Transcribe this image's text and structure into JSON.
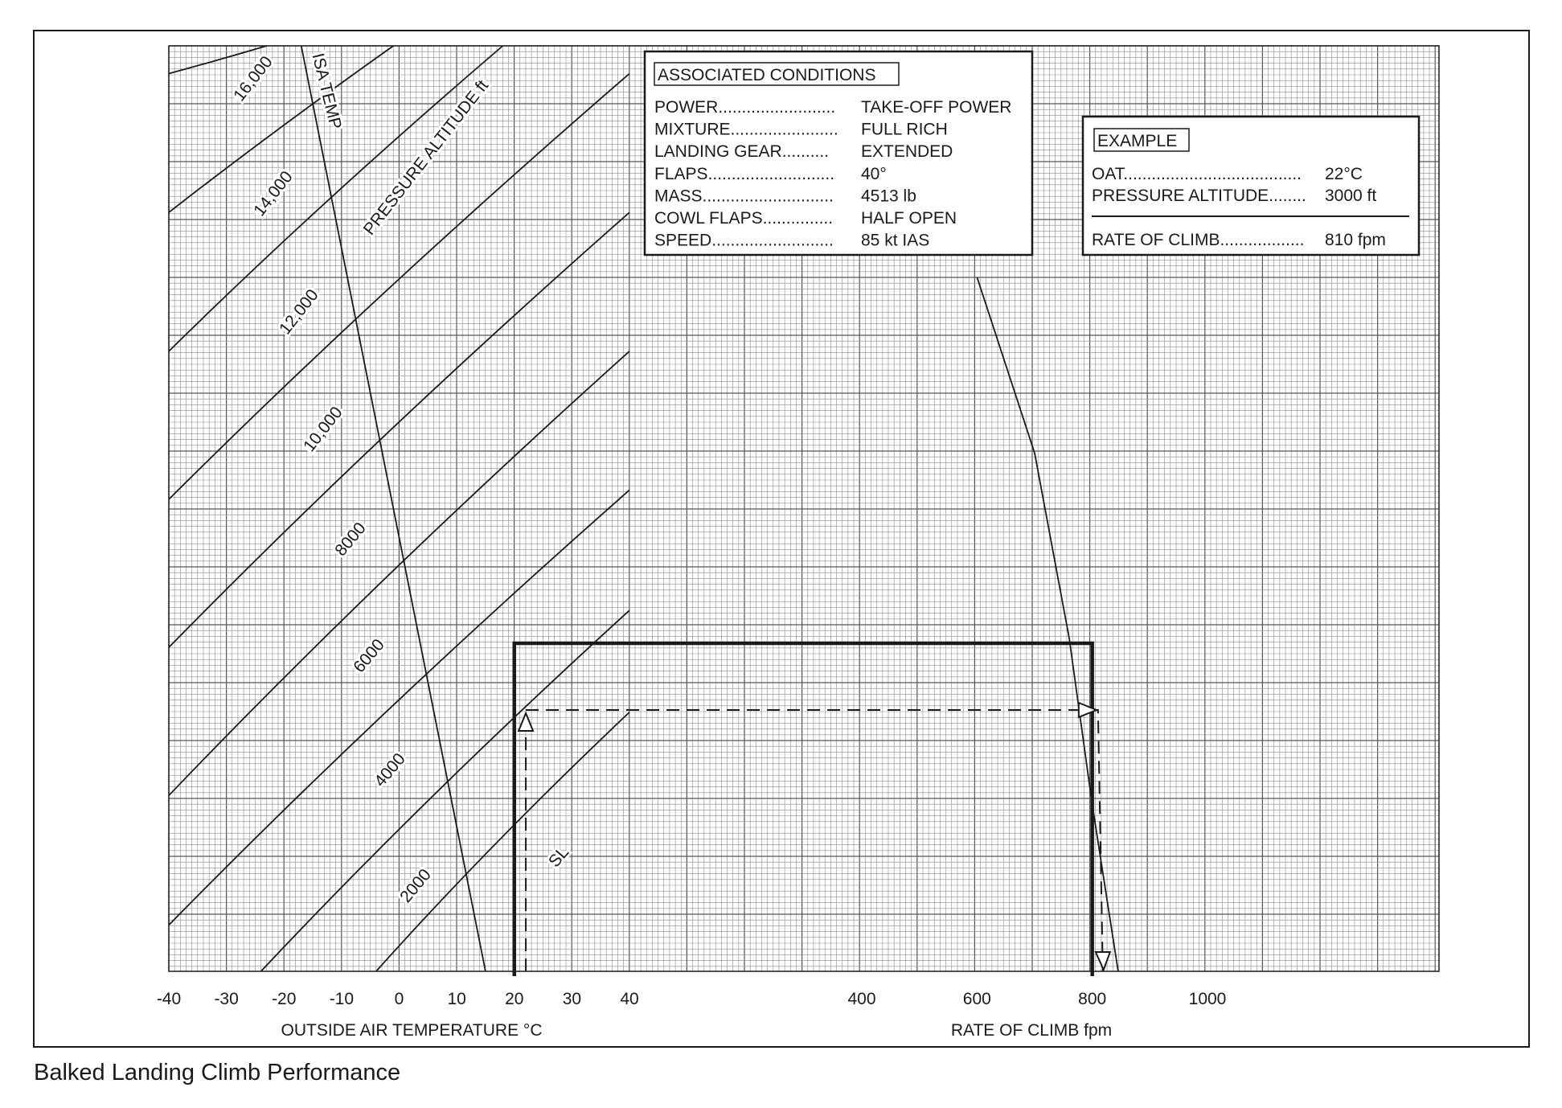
{
  "caption": "Balked Landing Climb Performance",
  "associated_conditions": {
    "title": "ASSOCIATED CONDITIONS",
    "rows": [
      {
        "label": "POWER.........................",
        "value": "TAKE-OFF POWER"
      },
      {
        "label": "MIXTURE.......................",
        "value": "FULL RICH"
      },
      {
        "label": "LANDING GEAR..........",
        "value": "EXTENDED"
      },
      {
        "label": "FLAPS...........................",
        "value": "40°"
      },
      {
        "label": "MASS............................",
        "value": "4513 lb"
      },
      {
        "label": "COWL FLAPS...............",
        "value": "HALF OPEN"
      },
      {
        "label": "SPEED..........................",
        "value": "85 kt IAS"
      }
    ]
  },
  "example": {
    "title": "EXAMPLE",
    "rows": [
      {
        "label": "OAT......................................",
        "value": "22°C"
      },
      {
        "label": "PRESSURE ALTITUDE........",
        "value": "3000 ft"
      }
    ],
    "result": {
      "label": "RATE OF CLIMB..................",
      "value": "810 fpm"
    }
  },
  "chart_data": {
    "type": "line",
    "title": "",
    "grid": true,
    "panels": [
      {
        "name": "temperature",
        "xlabel": "OUTSIDE AIR TEMPERATURE  °C",
        "xlim": [
          -40,
          40
        ],
        "x_ticks": [
          "-40",
          "-30",
          "-20",
          "-10",
          "0",
          "10",
          "20",
          "30",
          "40"
        ],
        "series": [
          {
            "name": "SL",
            "x": [
              -4,
              40
            ],
            "y": [
              0,
              0.28
            ]
          },
          {
            "name": "2000",
            "x": [
              -24,
              40
            ],
            "y": [
              0,
              0.39
            ]
          },
          {
            "name": "4000",
            "x": [
              -40,
              40
            ],
            "y": [
              0.05,
              0.52
            ]
          },
          {
            "name": "6000",
            "x": [
              -40,
              40
            ],
            "y": [
              0.19,
              0.67
            ]
          },
          {
            "name": "8000",
            "x": [
              -40,
              40
            ],
            "y": [
              0.35,
              0.82
            ]
          },
          {
            "name": "10,000",
            "x": [
              -40,
              40
            ],
            "y": [
              0.51,
              0.97
            ]
          },
          {
            "name": "12,000",
            "x": [
              -40,
              18
            ],
            "y": [
              0.67,
              1
            ]
          },
          {
            "name": "14,000",
            "x": [
              -40,
              -1
            ],
            "y": [
              0.82,
              1
            ]
          },
          {
            "name": "16,000",
            "x": [
              -40,
              -23
            ],
            "y": [
              0.97,
              1
            ]
          },
          {
            "name": "ISA TEMP",
            "x": [
              15,
              -17
            ],
            "y": [
              0,
              1
            ]
          }
        ],
        "line_labels": {
          "16,000": "16,000",
          "14,000": "14,000",
          "12,000": "12,000",
          "10,000": "10,000",
          "8000": "8000",
          "6000": "6000",
          "4000": "4000",
          "2000": "2000",
          "SL": "SL",
          "isa": "ISA TEMP",
          "pressure_altitude": "PRESSURE ALTITUDE  ft"
        }
      },
      {
        "name": "rate_of_climb",
        "xlabel": "RATE OF CLIMB  fpm",
        "xlim": [
          0,
          1400
        ],
        "x_ticks": [
          "400",
          "600",
          "800",
          "1000"
        ],
        "series": [
          {
            "name": "rate of climb",
            "x": [
              600,
              700,
              760,
              800,
              830,
              845
            ],
            "y": [
              0.75,
              0.56,
              0.36,
              0.18,
              0.06,
              0
            ]
          }
        ]
      }
    ],
    "example_path": {
      "oat": 22,
      "pressure_altitude_ft": 3000,
      "rate_of_climb_fpm": 810
    },
    "reference_path": {
      "oat": 20,
      "rate_of_climb_fpm": 800
    }
  }
}
